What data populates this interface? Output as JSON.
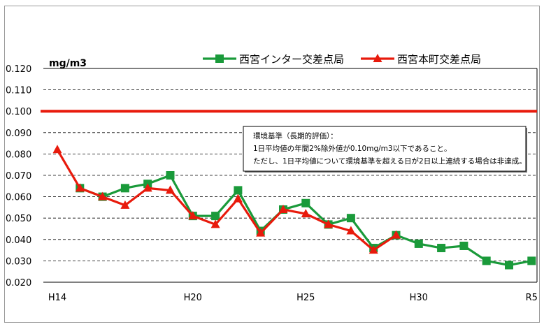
{
  "chart_data": {
    "type": "line",
    "ylabel": "mg/m3",
    "ylim": [
      0.02,
      0.12
    ],
    "yticks": [
      "0.020",
      "0.030",
      "0.040",
      "0.050",
      "0.060",
      "0.070",
      "0.080",
      "0.090",
      "0.100",
      "0.110",
      "0.120"
    ],
    "x_ticks": [
      {
        "label": "H14",
        "year": 2002
      },
      {
        "label": "H20",
        "year": 2008
      },
      {
        "label": "H25",
        "year": 2013
      },
      {
        "label": "H30",
        "year": 2018
      },
      {
        "label": "R5",
        "year": 2023
      }
    ],
    "x": [
      2002,
      2003,
      2004,
      2005,
      2006,
      2007,
      2008,
      2009,
      2010,
      2011,
      2012,
      2013,
      2014,
      2015,
      2016,
      2017,
      2018,
      2019,
      2020,
      2021,
      2022,
      2023
    ],
    "series": [
      {
        "name": "西宮インター交差点局",
        "color": "#1a9a3a",
        "marker": "square",
        "values": [
          null,
          0.064,
          0.06,
          0.064,
          0.066,
          0.07,
          0.051,
          0.051,
          0.063,
          0.044,
          0.054,
          0.057,
          0.047,
          0.05,
          0.036,
          0.042,
          0.038,
          0.036,
          0.037,
          0.03,
          0.028,
          0.03
        ]
      },
      {
        "name": "西宮本町交差点局",
        "color": "#e81a0c",
        "marker": "triangle",
        "values": [
          0.082,
          0.064,
          0.06,
          0.056,
          0.064,
          0.063,
          0.051,
          0.047,
          0.059,
          0.043,
          0.054,
          0.052,
          0.047,
          0.044,
          0.035,
          0.042,
          null,
          null,
          null,
          null,
          null,
          null
        ]
      }
    ],
    "reference_line": {
      "value": 0.1,
      "color": "#e81a0c"
    },
    "annotation": [
      "環境基準（長期的評価）：",
      "1日平均値の年間2%除外値が0.10mg/m3以下であること。",
      "ただし、1日平均値について環境基準を超える日が2日以上連続する場合は非達成。"
    ],
    "grid": true,
    "legend_position": "top-right"
  }
}
